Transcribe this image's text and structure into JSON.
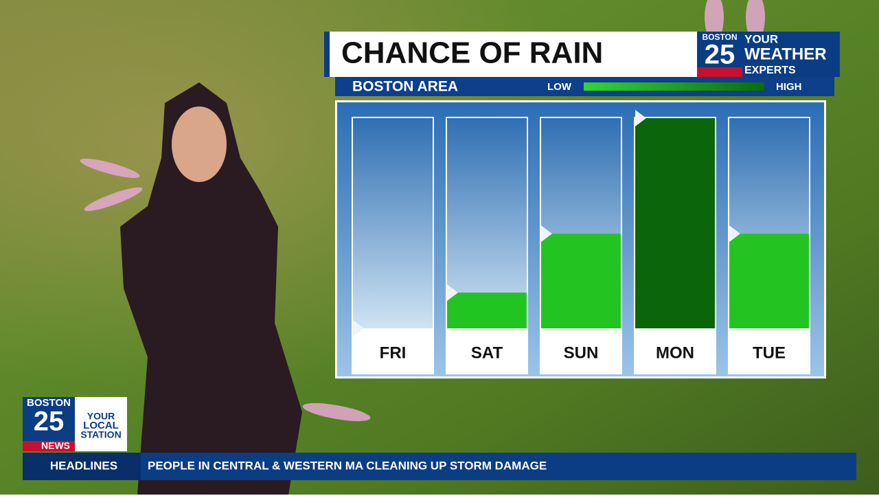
{
  "chart_data": {
    "type": "bar",
    "title": "CHANCE OF RAIN",
    "subtitle": "BOSTON AREA",
    "scale_low": "LOW",
    "scale_high": "HIGH",
    "categories": [
      "FRI",
      "SAT",
      "SUN",
      "MON",
      "TUE"
    ],
    "values": [
      0,
      17,
      45,
      100,
      45
    ],
    "colors": [
      "#22c422",
      "#22c422",
      "#22c422",
      "#0b660b",
      "#22c422"
    ],
    "ylim": [
      0,
      100
    ]
  },
  "logo": {
    "station": "BOSTON",
    "number": "25",
    "tagline": [
      "YOUR",
      "WEATHER",
      "EXPERTS"
    ]
  },
  "bug": {
    "station": "BOSTON",
    "number": "25",
    "label": "NEWS",
    "tagline": [
      "YOUR",
      "LOCAL",
      "STATION"
    ]
  },
  "ticker": {
    "label": "HEADLINES",
    "text": "PEOPLE IN CENTRAL & WESTERN MA CLEANING UP STORM DAMAGE"
  }
}
